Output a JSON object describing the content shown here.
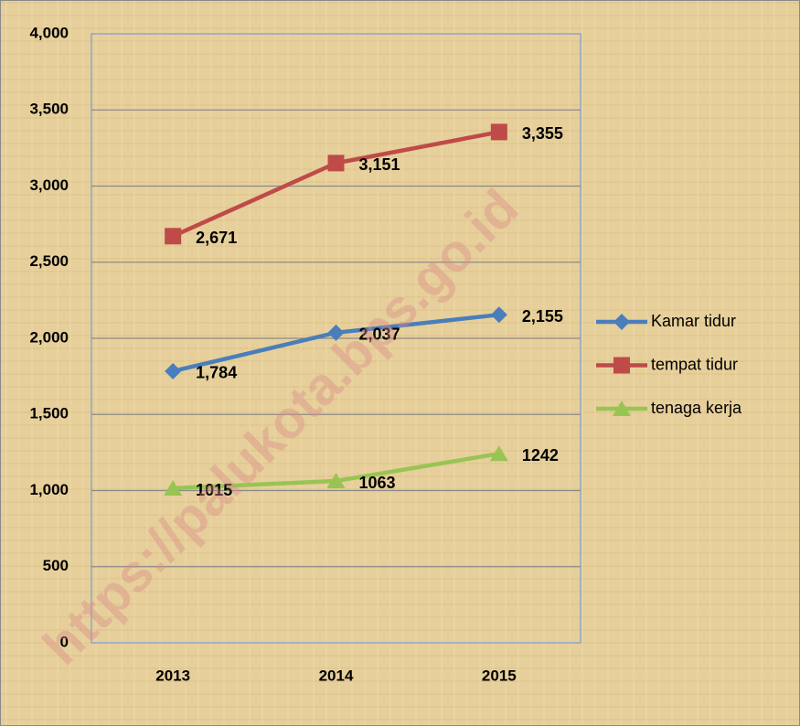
{
  "chart_data": {
    "type": "line",
    "categories": [
      "2013",
      "2014",
      "2015"
    ],
    "series": [
      {
        "name": "Kamar tidur",
        "color": "#4a7ebb",
        "marker": "diamond",
        "values": [
          1784,
          2037,
          2155
        ],
        "value_labels": [
          "1,784",
          "2,037",
          "2,155"
        ]
      },
      {
        "name": "tempat tidur",
        "color": "#be4b48",
        "marker": "square",
        "values": [
          2671,
          3151,
          3355
        ],
        "value_labels": [
          "2,671",
          "3,151",
          "3,355"
        ]
      },
      {
        "name": "tenaga kerja",
        "color": "#98c454",
        "marker": "triangle",
        "values": [
          1015,
          1063,
          1242
        ],
        "value_labels": [
          "1015",
          "1063",
          "1242"
        ]
      }
    ],
    "ylim": [
      0,
      4000
    ],
    "yticks": [
      0,
      500,
      {
        "value": 1000,
        "label": "1,000"
      },
      {
        "value": 1500,
        "label": "1,500"
      },
      {
        "value": 2000,
        "label": "2,000"
      },
      {
        "value": 2500,
        "label": "2,500"
      },
      {
        "value": 3000,
        "label": "3,000"
      },
      {
        "value": 3500,
        "label": "3,500"
      },
      {
        "value": 4000,
        "label": "4,000"
      }
    ],
    "grid": true,
    "legend": "right",
    "watermark": "https://palukota.bps.go.id"
  }
}
